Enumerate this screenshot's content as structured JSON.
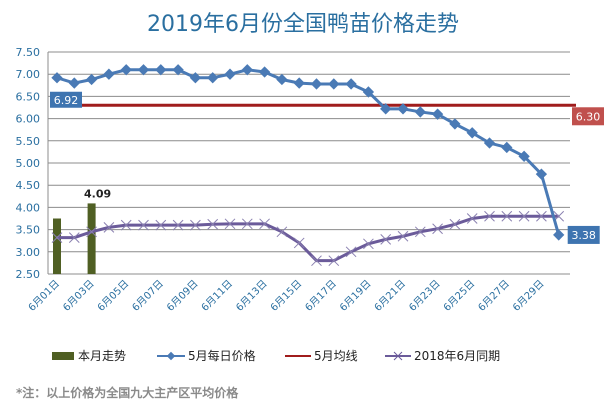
{
  "chart_data": {
    "type": "line",
    "title": "2019年6月份全国鸭苗价格走势",
    "xlabel": "",
    "ylabel": "",
    "ylim": [
      2.5,
      7.5
    ],
    "yticks": [
      "7.50",
      "7.00",
      "6.50",
      "6.00",
      "5.50",
      "5.00",
      "4.50",
      "4.00",
      "3.50",
      "3.00",
      "2.50"
    ],
    "xtick_labels": [
      "6月01日",
      "6月03日",
      "6月05日",
      "6月07日",
      "6月09日",
      "6月11日",
      "6月13日",
      "6月15日",
      "6月17日",
      "6月19日",
      "6月21日",
      "6月23日",
      "6月25日",
      "6月27日",
      "6月29日"
    ],
    "grid": true,
    "legend_position": "bottom",
    "series": [
      {
        "name": "本月走势",
        "kind": "bar",
        "color": "#4f5f23",
        "x": [
          1,
          3
        ],
        "values": [
          3.75,
          4.09
        ],
        "data_label": "4.09"
      },
      {
        "name": "5月每日价格",
        "kind": "line",
        "marker": "diamond",
        "color": "#4a7ab5",
        "values": [
          6.92,
          6.8,
          6.88,
          7.0,
          7.1,
          7.1,
          7.1,
          7.1,
          6.92,
          6.92,
          7.0,
          7.1,
          7.05,
          6.88,
          6.8,
          6.78,
          6.78,
          6.78,
          6.6,
          6.22,
          6.22,
          6.15,
          6.1,
          5.88,
          5.68,
          5.45,
          5.35,
          5.15,
          4.75,
          3.38
        ],
        "start_label": "6.92",
        "end_label": "3.38"
      },
      {
        "name": "5月均线",
        "kind": "line",
        "color": "#a01c1c",
        "value": 6.3,
        "end_label": "6.30"
      },
      {
        "name": "2018年6月同期",
        "kind": "line",
        "marker": "x",
        "color": "#6b5b9a",
        "values": [
          3.32,
          3.32,
          3.45,
          3.55,
          3.6,
          3.6,
          3.6,
          3.6,
          3.6,
          3.62,
          3.63,
          3.63,
          3.63,
          3.45,
          3.2,
          2.8,
          2.8,
          3.0,
          3.18,
          3.28,
          3.35,
          3.45,
          3.52,
          3.62,
          3.75,
          3.8,
          3.8,
          3.8,
          3.8,
          3.8
        ]
      }
    ],
    "annotation": "*注：以上价格为全国九大主产区平均价格"
  },
  "legend": {
    "bar": "本月走势",
    "may_daily": "5月每日价格",
    "may_avg": "5月均线",
    "last_year": "2018年6月同期"
  }
}
